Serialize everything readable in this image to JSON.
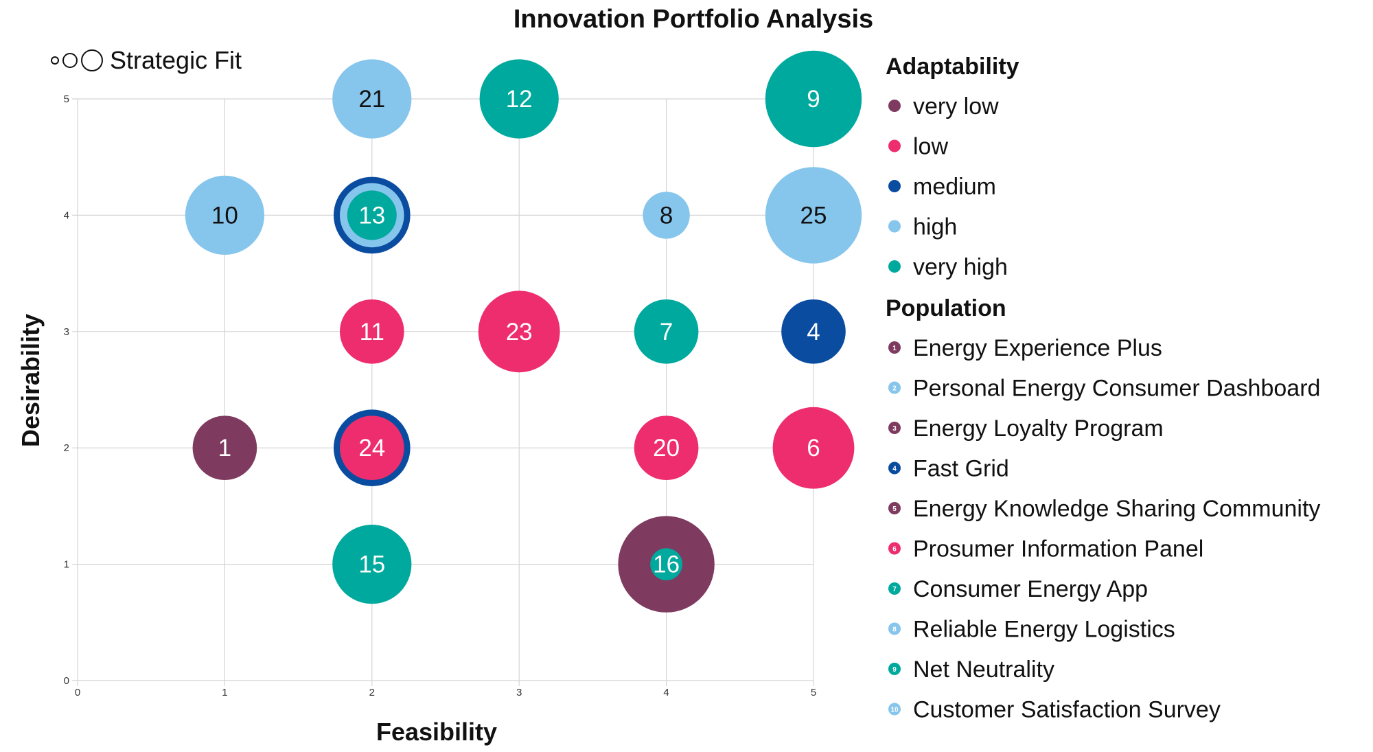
{
  "chart_data": {
    "type": "bubble",
    "title": "Innovation Portfolio Analysis",
    "xlabel": "Feasibility",
    "ylabel": "Desirability",
    "xlim": [
      0,
      5
    ],
    "ylim": [
      0,
      5
    ],
    "xticks": [
      "0",
      "1",
      "2",
      "3",
      "4",
      "5"
    ],
    "yticks": [
      "0",
      "1",
      "2",
      "3",
      "4",
      "5"
    ],
    "grid": true,
    "size_legend": "Strategic Fit",
    "colors": {
      "very low": "#7e3a5f",
      "low": "#ee2d6e",
      "medium": "#0a4ca0",
      "high": "#86c5ec",
      "very high": "#00a99d"
    },
    "adaptability_title": "Adaptability",
    "adaptability_levels": [
      "very low",
      "low",
      "medium",
      "high",
      "very high"
    ],
    "population_title": "Population",
    "population": [
      {
        "id": "1",
        "name": "Energy Experience Plus",
        "adaptability": "very low"
      },
      {
        "id": "2",
        "name": "Personal Energy Consumer Dashboard",
        "adaptability": "high"
      },
      {
        "id": "3",
        "name": "Energy Loyalty Program",
        "adaptability": "very low"
      },
      {
        "id": "4",
        "name": "Fast Grid",
        "adaptability": "medium"
      },
      {
        "id": "5",
        "name": "Energy Knowledge Sharing Community",
        "adaptability": "very low"
      },
      {
        "id": "6",
        "name": "Prosumer Information Panel",
        "adaptability": "low"
      },
      {
        "id": "7",
        "name": "Consumer Energy App",
        "adaptability": "very high"
      },
      {
        "id": "8",
        "name": "Reliable Energy Logistics",
        "adaptability": "high"
      },
      {
        "id": "9",
        "name": "Net Neutrality",
        "adaptability": "very high"
      },
      {
        "id": "10",
        "name": "Customer Satisfaction Survey",
        "adaptability": "high"
      }
    ],
    "points": [
      {
        "id": "21",
        "x": 2,
        "y": 5,
        "fit": 3.2,
        "adaptability": "high"
      },
      {
        "id": "12",
        "x": 3,
        "y": 5,
        "fit": 3.2,
        "adaptability": "very high"
      },
      {
        "id": "9",
        "x": 5,
        "y": 5,
        "fit": 3.9,
        "adaptability": "very high"
      },
      {
        "id": "10",
        "x": 1,
        "y": 4,
        "fit": 3.2,
        "adaptability": "high"
      },
      {
        "id": "13_outer",
        "x": 2,
        "y": 4,
        "fit": 3.1,
        "adaptability": "medium",
        "hidden_label": true
      },
      {
        "id": "13_mid",
        "x": 2,
        "y": 4,
        "fit": 2.6,
        "adaptability": "high",
        "hidden_label": true
      },
      {
        "id": "13",
        "x": 2,
        "y": 4,
        "fit": 2.0,
        "adaptability": "very high"
      },
      {
        "id": "8",
        "x": 4,
        "y": 4,
        "fit": 1.9,
        "adaptability": "high"
      },
      {
        "id": "25",
        "x": 5,
        "y": 4,
        "fit": 3.9,
        "adaptability": "high"
      },
      {
        "id": "11",
        "x": 2,
        "y": 3,
        "fit": 2.6,
        "adaptability": "low"
      },
      {
        "id": "23",
        "x": 3,
        "y": 3,
        "fit": 3.3,
        "adaptability": "low"
      },
      {
        "id": "7",
        "x": 4,
        "y": 3,
        "fit": 2.6,
        "adaptability": "very high"
      },
      {
        "id": "4",
        "x": 5,
        "y": 3,
        "fit": 2.6,
        "adaptability": "medium"
      },
      {
        "id": "1",
        "x": 1,
        "y": 2,
        "fit": 2.6,
        "adaptability": "very low"
      },
      {
        "id": "24_outer",
        "x": 2,
        "y": 2,
        "fit": 3.1,
        "adaptability": "medium",
        "hidden_label": true
      },
      {
        "id": "24",
        "x": 2,
        "y": 2,
        "fit": 2.6,
        "adaptability": "low"
      },
      {
        "id": "20",
        "x": 4,
        "y": 2,
        "fit": 2.6,
        "adaptability": "low"
      },
      {
        "id": "6",
        "x": 5,
        "y": 2,
        "fit": 3.3,
        "adaptability": "low"
      },
      {
        "id": "15",
        "x": 2,
        "y": 1,
        "fit": 3.2,
        "adaptability": "very high"
      },
      {
        "id": "16_outer",
        "x": 4,
        "y": 1,
        "fit": 3.9,
        "adaptability": "very low",
        "hidden_label": true
      },
      {
        "id": "16",
        "x": 4,
        "y": 1,
        "fit": 1.3,
        "adaptability": "very high"
      }
    ]
  }
}
